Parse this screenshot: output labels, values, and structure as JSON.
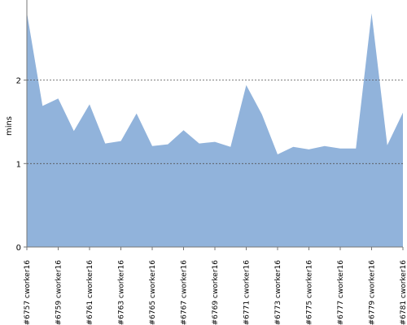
{
  "chart_data": {
    "type": "area",
    "y_label": "mins",
    "categories": [
      "#6757 cworker16",
      null,
      "#6759 cworker16",
      null,
      "#6761 cworker16",
      null,
      "#6763 cworker16",
      null,
      "#6765 cworker16",
      null,
      "#6767 cworker16",
      null,
      "#6769 cworker16",
      null,
      "#6771 cworker16",
      null,
      "#6773 cworker16",
      null,
      "#6775 cworker16",
      null,
      "#6777 cworker16",
      null,
      "#6779 cworker16",
      null,
      "#6781 cworker16"
    ],
    "values": [
      2.81,
      1.69,
      1.78,
      1.39,
      1.71,
      1.24,
      1.27,
      1.6,
      1.21,
      1.23,
      1.4,
      1.24,
      1.26,
      1.2,
      1.94,
      1.59,
      1.11,
      1.2,
      1.17,
      1.21,
      1.18,
      1.18,
      2.8,
      1.22,
      1.61
    ],
    "color": "#91b3db",
    "ylim": [
      0,
      2.96
    ],
    "yticks": [
      0,
      1,
      2
    ],
    "grid": true
  }
}
